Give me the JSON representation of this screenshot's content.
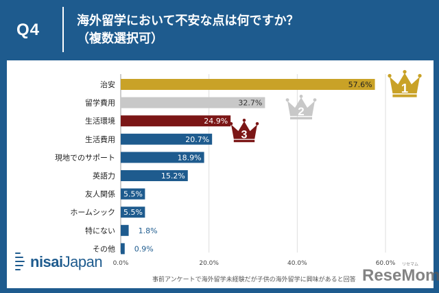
{
  "header": {
    "q_label": "Q4",
    "title_line1": "海外留学において不安な点は何ですか？",
    "title_line2": "（複数選択可）"
  },
  "chart_data": {
    "type": "bar",
    "orientation": "horizontal",
    "categories": [
      "治安",
      "留学費用",
      "生活環境",
      "生活費用",
      "現地でのサポート",
      "英語力",
      "友人関係",
      "ホームシック",
      "特にない",
      "その他"
    ],
    "values": [
      57.6,
      32.7,
      24.9,
      20.7,
      18.9,
      15.2,
      5.5,
      5.5,
      1.8,
      0.9
    ],
    "value_labels": [
      "57.6%",
      "32.7%",
      "24.9%",
      "20.7%",
      "18.9%",
      "15.2%",
      "5.5%",
      "5.5%",
      "1.8%",
      "0.9%"
    ],
    "xticks": [
      0,
      20,
      40,
      60
    ],
    "xtick_labels": [
      "0.0%",
      "20.0%",
      "40.0%",
      "60.0%"
    ],
    "xlim": [
      0,
      60
    ],
    "grid": true,
    "colors": [
      "#c9a227",
      "#c8c8c8",
      "#7b1616",
      "#1e5b8e",
      "#1e5b8e",
      "#1e5b8e",
      "#1e5b8e",
      "#1e5b8e",
      "#1e5b8e",
      "#1e5b8e"
    ],
    "rank_badges": [
      {
        "rank": "1",
        "color": "#c9a227"
      },
      {
        "rank": "2",
        "color": "#c8c8c8"
      },
      {
        "rank": "3",
        "color": "#7b1616"
      }
    ]
  },
  "footer": {
    "note": "事前アンケートで海外留学未経験だが子供の海外留学に興味があると回答",
    "logo_bold": "nisai",
    "logo_light": "Japan",
    "watermark": "ReseMom",
    "watermark_ruby": "リセマム"
  }
}
